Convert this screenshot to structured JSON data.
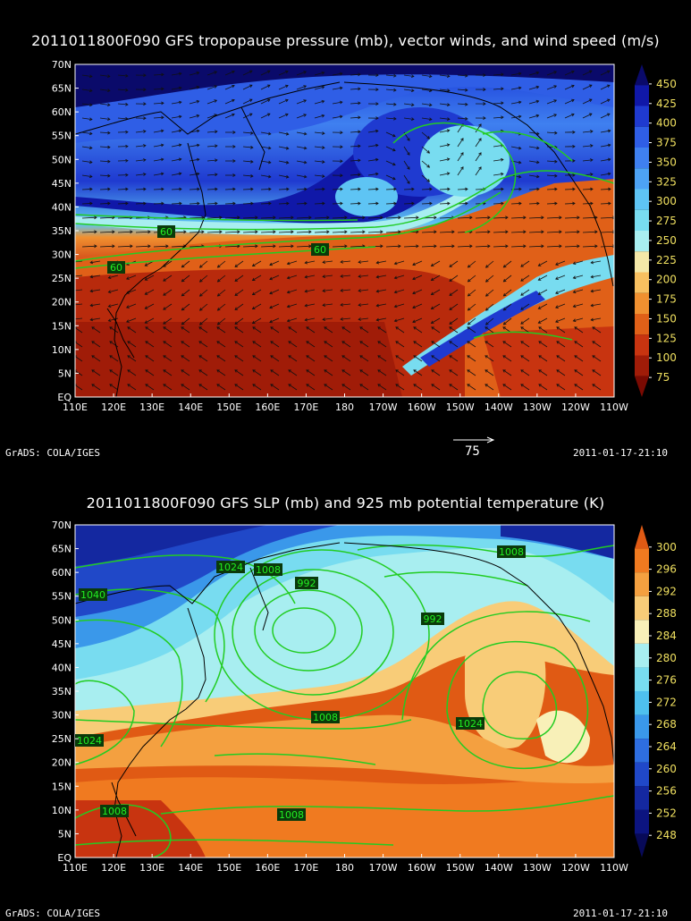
{
  "top_panel": {
    "title": "2011011800F090 GFS tropopause pressure (mb), vector winds, and wind speed (m/s)",
    "lat_labels": [
      "70N",
      "65N",
      "60N",
      "55N",
      "50N",
      "45N",
      "40N",
      "35N",
      "30N",
      "25N",
      "20N",
      "15N",
      "10N",
      "5N",
      "EQ"
    ],
    "lon_labels": [
      "110E",
      "120E",
      "130E",
      "140E",
      "150E",
      "160E",
      "170E",
      "180",
      "170W",
      "160W",
      "150W",
      "140W",
      "130W",
      "120W",
      "110W"
    ],
    "colorbar_values": [
      "450",
      "425",
      "400",
      "375",
      "350",
      "325",
      "300",
      "275",
      "250",
      "225",
      "200",
      "175",
      "150",
      "125",
      "100",
      "75"
    ],
    "colorbar_colors": [
      "#0a0a6a",
      "#1018a8",
      "#1f3ad0",
      "#2f5ee6",
      "#3f80f0",
      "#4da2f4",
      "#5ec4f4",
      "#78dcf0",
      "#a8eef0",
      "#f4e8a8",
      "#f8c060",
      "#f09030",
      "#e06018",
      "#c83410",
      "#a01c08",
      "#7a0a02"
    ],
    "contour_labels": [
      "60",
      "60",
      "60"
    ],
    "reference_vector_label": "75",
    "footer_left": "GrADS: COLA/IGES",
    "footer_right": "2011-01-17-21:10"
  },
  "bottom_panel": {
    "title": "2011011800F090 GFS SLP (mb) and 925 mb potential temperature (K)",
    "lat_labels": [
      "70N",
      "65N",
      "60N",
      "55N",
      "50N",
      "45N",
      "40N",
      "35N",
      "30N",
      "25N",
      "20N",
      "15N",
      "10N",
      "5N",
      "EQ"
    ],
    "lon_labels": [
      "110E",
      "120E",
      "130E",
      "140E",
      "150E",
      "160E",
      "170E",
      "180",
      "170W",
      "160W",
      "150W",
      "140W",
      "130W",
      "120W",
      "110W"
    ],
    "colorbar_values": [
      "300",
      "296",
      "292",
      "288",
      "284",
      "280",
      "276",
      "272",
      "268",
      "264",
      "260",
      "256",
      "252",
      "248"
    ],
    "colorbar_colors": [
      "#e05a14",
      "#f07a20",
      "#f4a040",
      "#f8cc78",
      "#f8f0b8",
      "#a8eef0",
      "#78dcf0",
      "#4ec0ee",
      "#3a98ea",
      "#2e6ee0",
      "#2048c8",
      "#1428a0",
      "#0c1480",
      "#080a58"
    ],
    "contour_labels": [
      "1024",
      "1008",
      "992",
      "1040",
      "992",
      "1008",
      "1008",
      "1024",
      "1024",
      "1008",
      "1008"
    ],
    "footer_left": "GrADS: COLA/IGES",
    "footer_right": "2011-01-17-21:10"
  }
}
